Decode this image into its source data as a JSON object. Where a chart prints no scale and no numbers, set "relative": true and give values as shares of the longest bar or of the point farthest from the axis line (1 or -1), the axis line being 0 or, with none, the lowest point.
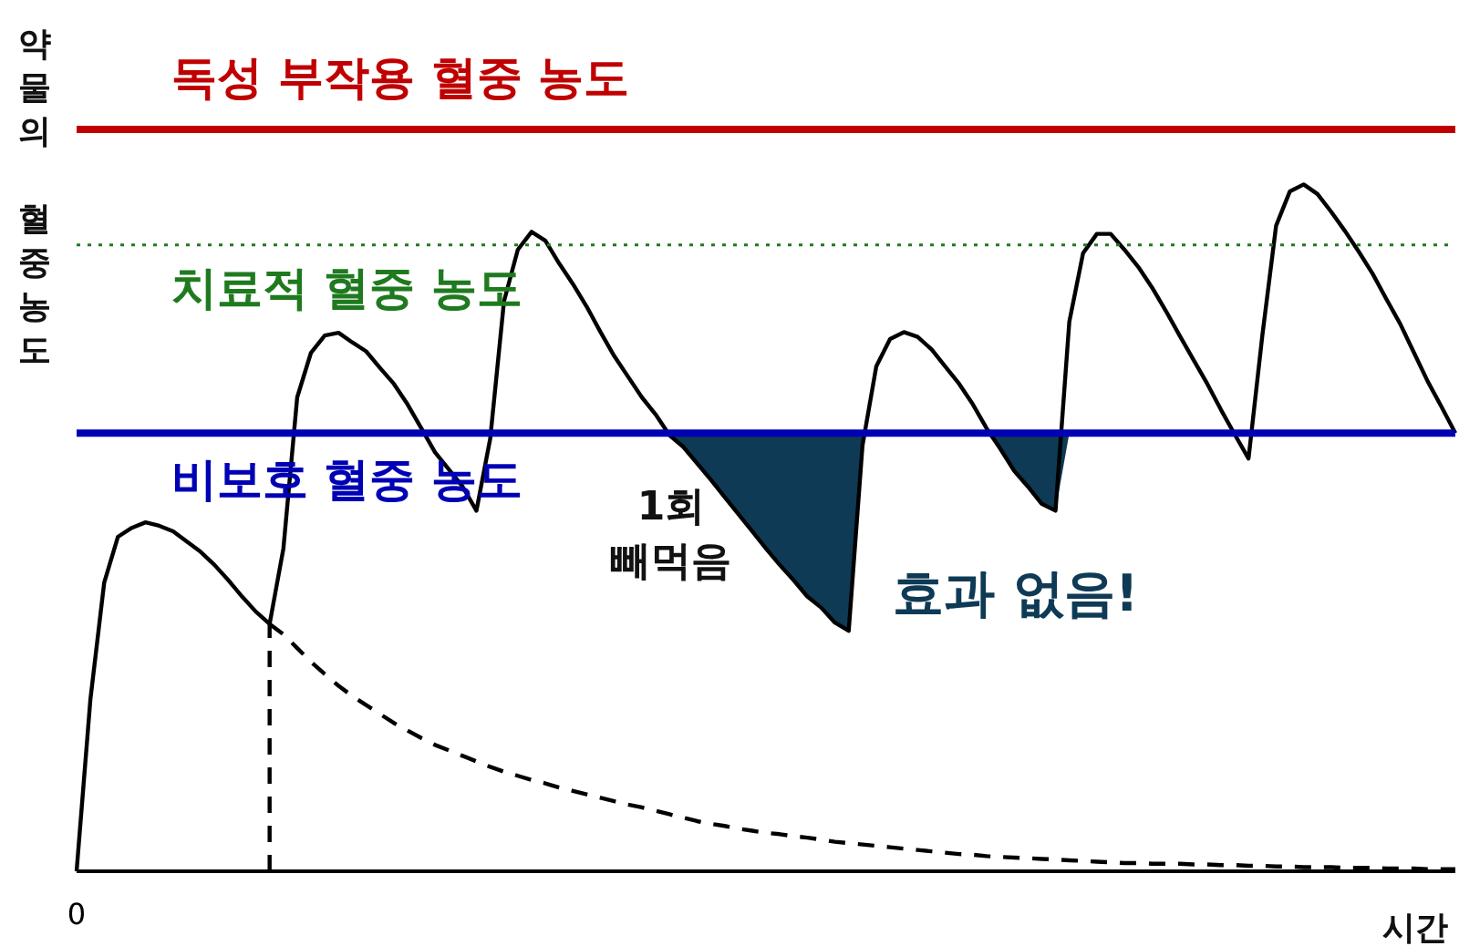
{
  "chart_data": {
    "type": "line",
    "relative": true,
    "xlabel": "시간",
    "ylabel": "약물의 혈중농도",
    "grid": false,
    "marker": "none",
    "categories": [
      null,
      null,
      null,
      null,
      null,
      null,
      null,
      null,
      null,
      null,
      null,
      null,
      null,
      null,
      null,
      null,
      null,
      null,
      null,
      null,
      null,
      null,
      null,
      null,
      null,
      null,
      null,
      null,
      null,
      null,
      null,
      null,
      null,
      null,
      null,
      null,
      null,
      null,
      null,
      null,
      null,
      null,
      null,
      null,
      null,
      null,
      null,
      null,
      null,
      null,
      null,
      null,
      null,
      null,
      null,
      null,
      null,
      null,
      null,
      null,
      null,
      null,
      null,
      null,
      null,
      null,
      null,
      null,
      null,
      null,
      null,
      null,
      null,
      null,
      null,
      null,
      null,
      null,
      null,
      null,
      null,
      null,
      null,
      null,
      null,
      null,
      null,
      null,
      null,
      null,
      null,
      null,
      null,
      null,
      null,
      null,
      null,
      null,
      null,
      null,
      null
    ],
    "series": [
      {
        "color": "#000000",
        "line_style": "solid",
        "values": [
          0,
          0.25,
          0.42,
          0.487,
          0.5,
          0.508,
          0.503,
          0.495,
          0.48,
          0.465,
          0.446,
          0.424,
          0.4,
          0.378,
          0.36,
          0.47,
          0.69,
          0.755,
          0.78,
          0.784,
          0.77,
          0.757,
          0.733,
          0.71,
          0.68,
          0.645,
          0.61,
          0.585,
          0.56,
          0.525,
          0.63,
          0.83,
          0.905,
          0.931,
          0.918,
          0.885,
          0.855,
          0.822,
          0.785,
          0.75,
          0.72,
          0.69,
          0.665,
          0.635,
          0.618,
          0.594,
          0.57,
          0.545,
          0.52,
          0.495,
          0.47,
          0.446,
          0.424,
          0.4,
          0.384,
          0.362,
          0.35,
          0.62,
          0.735,
          0.775,
          0.785,
          0.778,
          0.76,
          0.735,
          0.71,
          0.68,
          0.645,
          0.615,
          0.583,
          0.56,
          0.535,
          0.525,
          0.8,
          0.9,
          0.928,
          0.928,
          0.905,
          0.88,
          0.85,
          0.816,
          0.78,
          0.745,
          0.71,
          0.672,
          0.636,
          0.601,
          0.78,
          0.94,
          0.99,
          1.0,
          0.986,
          0.96,
          0.932,
          0.902,
          0.87,
          0.833,
          0.797,
          0.755,
          0.713,
          0.676,
          0.638
        ],
        "lower": [
          null,
          null,
          null,
          null,
          null,
          null,
          null,
          null,
          null,
          null,
          null,
          null,
          null,
          null,
          null,
          null,
          null,
          null,
          null,
          null,
          null,
          null,
          null,
          null,
          null,
          null,
          null,
          null,
          null,
          null,
          null,
          null,
          null,
          null,
          null,
          null,
          null,
          null,
          null,
          null,
          null,
          null,
          0.638,
          0.635,
          0.618,
          0.594,
          0.57,
          0.545,
          0.52,
          0.495,
          0.47,
          0.446,
          0.424,
          0.4,
          0.384,
          0.362,
          0.35,
          0.62,
          null,
          null,
          null,
          null,
          null,
          null,
          null,
          null,
          0.638,
          0.615,
          0.583,
          0.56,
          0.535,
          0.525,
          0.638,
          null,
          null,
          null,
          null,
          null,
          null,
          null,
          null,
          null,
          null,
          null,
          null,
          null,
          null,
          null,
          null,
          null,
          null,
          null,
          null,
          null,
          null,
          null,
          null,
          null,
          null,
          null,
          null
        ],
        "upper": [
          null,
          null,
          null,
          null,
          null,
          null,
          null,
          null,
          null,
          null,
          null,
          null,
          null,
          null,
          null,
          null,
          null,
          null,
          null,
          null,
          null,
          null,
          null,
          null,
          null,
          null,
          null,
          null,
          null,
          null,
          null,
          null,
          null,
          null,
          null,
          null,
          null,
          null,
          null,
          null,
          null,
          null,
          0.638,
          0.638,
          0.638,
          0.638,
          0.638,
          0.638,
          0.638,
          0.638,
          0.638,
          0.638,
          0.638,
          0.638,
          0.638,
          0.638,
          0.638,
          0.638,
          null,
          null,
          null,
          null,
          null,
          null,
          null,
          null,
          0.638,
          0.638,
          0.638,
          0.638,
          0.638,
          0.638,
          0.638,
          null,
          null,
          null,
          null,
          null,
          null,
          null,
          null,
          null,
          null,
          null,
          null,
          null,
          null,
          null,
          null,
          null,
          null,
          null,
          null,
          null,
          null,
          null,
          null,
          null,
          null,
          null,
          null
        ]
      },
      {
        "color": "#000000",
        "line_style": "dashed",
        "values": [
          null,
          null,
          null,
          null,
          null,
          null,
          null,
          null,
          null,
          null,
          null,
          null,
          null,
          null,
          0.36,
          0.345,
          0.325,
          0.305,
          0.287,
          0.27,
          0.255,
          0.242,
          0.229,
          0.216,
          0.205,
          0.194,
          0.184,
          0.176,
          0.168,
          0.16,
          0.152,
          0.145,
          0.139,
          0.133,
          0.128,
          0.122,
          0.117,
          0.112,
          0.107,
          0.102,
          0.097,
          0.093,
          0.088,
          0.083,
          0.078,
          0.073,
          0.069,
          0.066,
          0.062,
          0.059,
          0.056,
          0.054,
          0.051,
          0.049,
          0.046,
          0.043,
          0.041,
          0.039,
          0.037,
          0.035,
          0.033,
          0.031,
          0.029,
          0.027,
          0.025,
          0.024,
          0.022,
          0.021,
          0.02,
          0.019,
          0.018,
          0.017,
          0.016,
          0.015,
          0.014,
          0.013,
          0.012,
          0.012,
          0.011,
          0.011,
          0.011,
          0.01,
          0.01,
          0.009,
          0.009,
          0.008,
          0.008,
          0.007,
          0.007,
          0.006,
          0.006,
          0.006,
          0.005,
          0.005,
          0.005,
          0.004,
          0.004,
          0.004,
          0.003,
          0.003,
          0.003
        ]
      }
    ],
    "ref_lines": [
      {
        "axis": "y",
        "value": 1.08,
        "label": "독성 부작용 혈중 농도",
        "color": "#c00000",
        "line_style": "solid"
      },
      {
        "axis": "y",
        "value": 0.912,
        "label": "치료적 혈중 농도",
        "color": "#1f7a1f",
        "line_style": "dotted"
      },
      {
        "axis": "y",
        "value": 0.638,
        "label": "비보호 혈중 농도",
        "color": "#0000b4",
        "line_style": "solid"
      }
    ],
    "annotations": [
      "1회 빼먹음",
      "효과 없음!",
      "0"
    ]
  }
}
